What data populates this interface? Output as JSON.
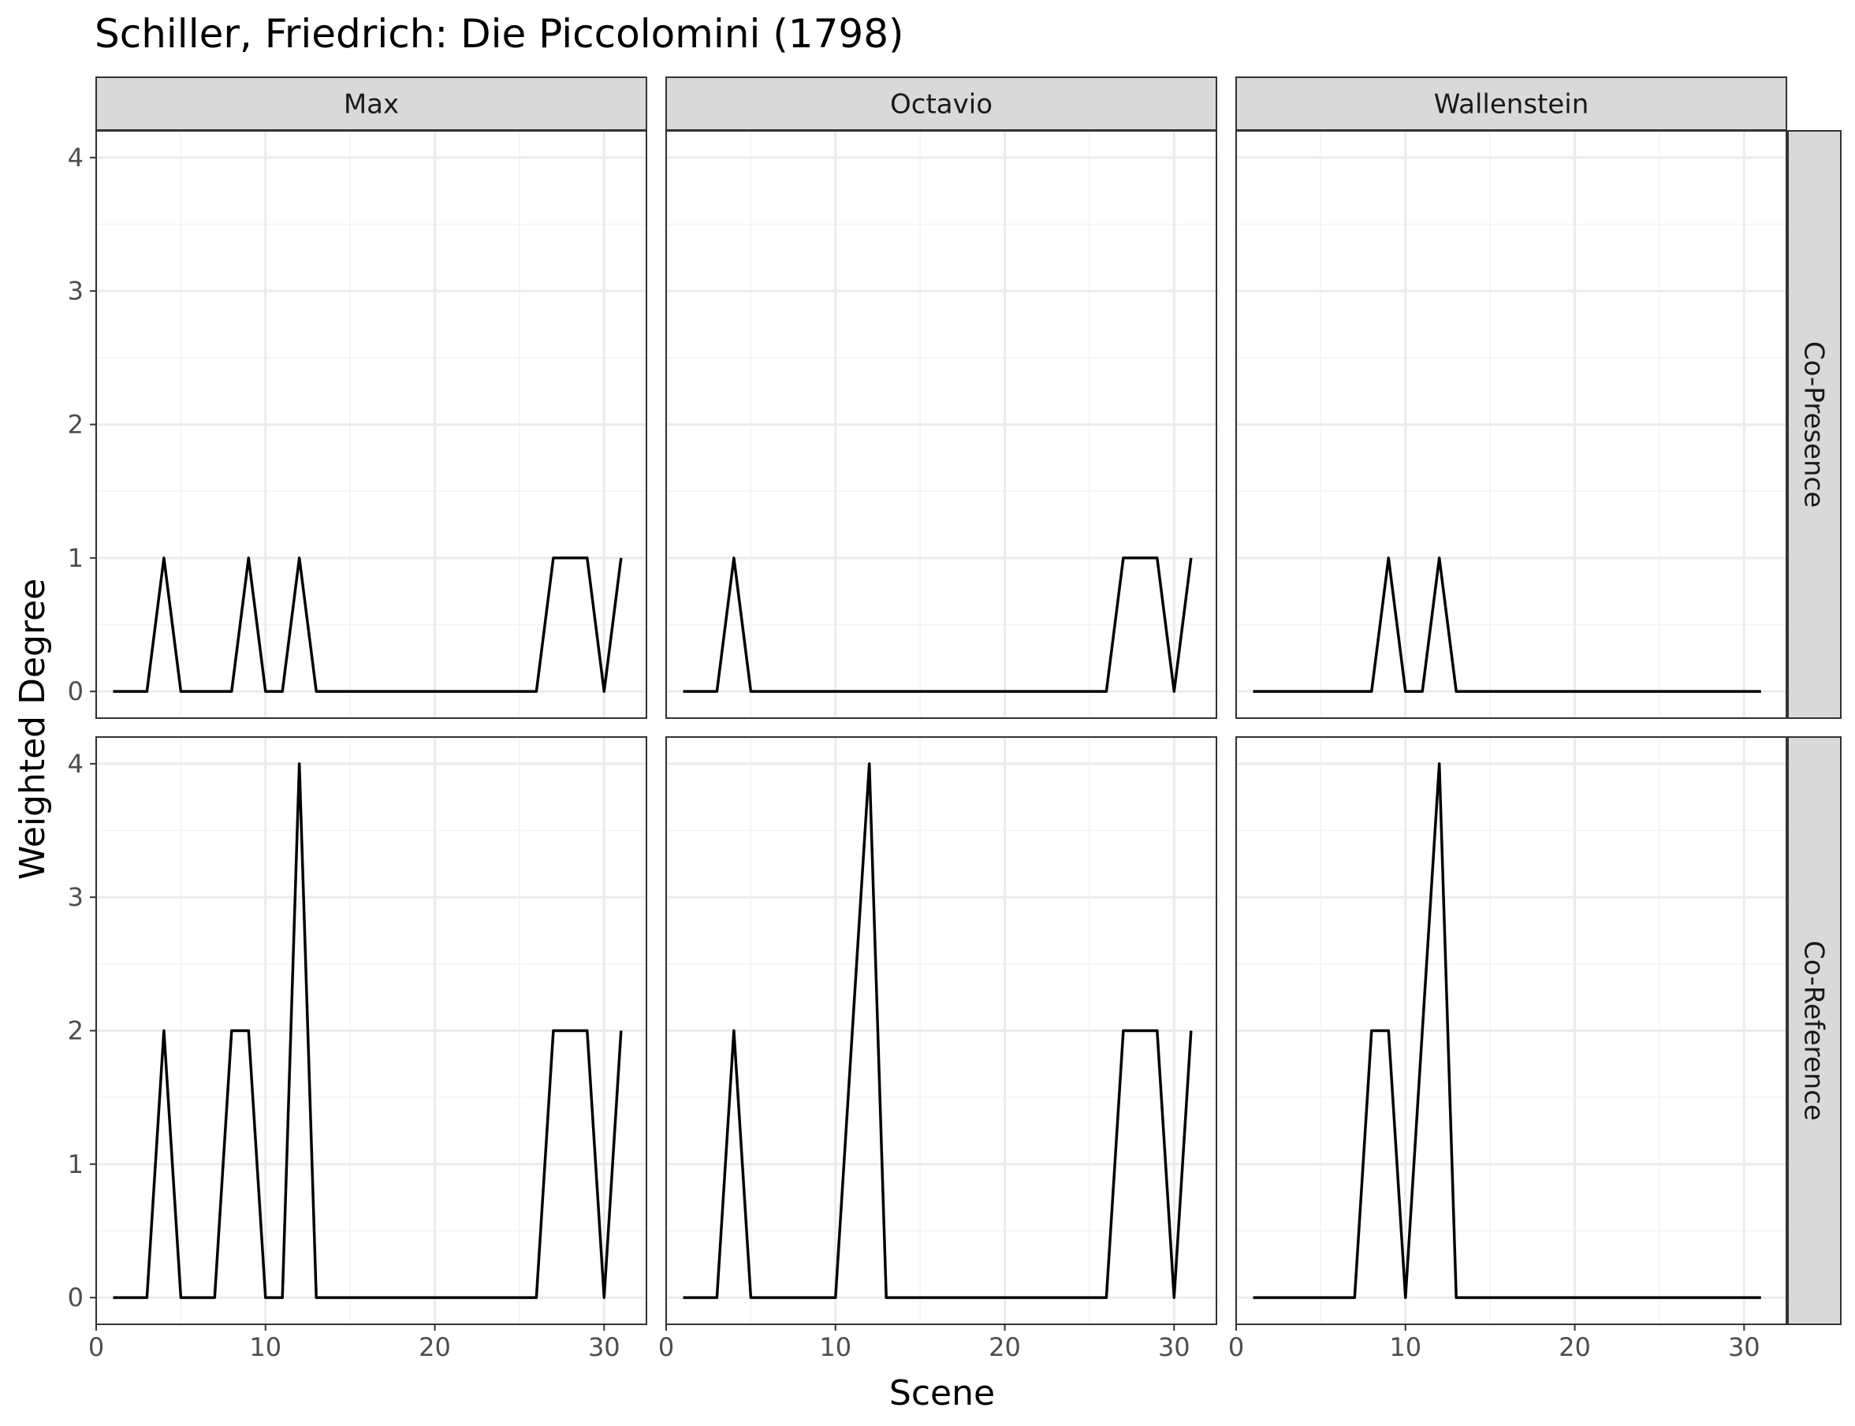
{
  "chart_data": {
    "type": "line",
    "title": "Schiller, Friedrich: Die Piccolomini (1798)",
    "xlabel": "Scene",
    "ylabel": "Weighted Degree",
    "xlim": [
      0,
      32.5
    ],
    "ylim": [
      0,
      4
    ],
    "x_ticks": [
      0,
      10,
      20,
      30
    ],
    "y_ticks": [
      0,
      1,
      2,
      3,
      4
    ],
    "grid": true,
    "columns": [
      "Max",
      "Octavio",
      "Wallenstein"
    ],
    "rows": [
      "Co-Presence",
      "Co-Reference"
    ],
    "x": [
      1,
      2,
      3,
      4,
      5,
      6,
      7,
      8,
      9,
      10,
      11,
      12,
      13,
      14,
      15,
      16,
      17,
      18,
      19,
      20,
      21,
      22,
      23,
      24,
      25,
      26,
      27,
      28,
      29,
      30,
      31
    ],
    "panels": [
      {
        "column": "Max",
        "row": "Co-Presence",
        "values": [
          0,
          0,
          0,
          1,
          0,
          0,
          0,
          0,
          1,
          0,
          0,
          1,
          0,
          0,
          0,
          0,
          0,
          0,
          0,
          0,
          0,
          0,
          0,
          0,
          0,
          0,
          1,
          1,
          1,
          0,
          1
        ]
      },
      {
        "column": "Octavio",
        "row": "Co-Presence",
        "values": [
          0,
          0,
          0,
          1,
          0,
          0,
          0,
          0,
          0,
          0,
          0,
          0,
          0,
          0,
          0,
          0,
          0,
          0,
          0,
          0,
          0,
          0,
          0,
          0,
          0,
          0,
          1,
          1,
          1,
          0,
          1
        ]
      },
      {
        "column": "Wallenstein",
        "row": "Co-Presence",
        "values": [
          0,
          0,
          0,
          0,
          0,
          0,
          0,
          0,
          1,
          0,
          0,
          1,
          0,
          0,
          0,
          0,
          0,
          0,
          0,
          0,
          0,
          0,
          0,
          0,
          0,
          0,
          0,
          0,
          0,
          0,
          0
        ]
      },
      {
        "column": "Max",
        "row": "Co-Reference",
        "values": [
          0,
          0,
          0,
          2,
          0,
          0,
          0,
          2,
          2,
          0,
          0,
          4,
          0,
          0,
          0,
          0,
          0,
          0,
          0,
          0,
          0,
          0,
          0,
          0,
          0,
          0,
          2,
          2,
          2,
          0,
          2
        ]
      },
      {
        "column": "Octavio",
        "row": "Co-Reference",
        "values": [
          0,
          0,
          0,
          2,
          0,
          0,
          0,
          0,
          0,
          0,
          2,
          4,
          0,
          0,
          0,
          0,
          0,
          0,
          0,
          0,
          0,
          0,
          0,
          0,
          0,
          0,
          2,
          2,
          2,
          0,
          2
        ]
      },
      {
        "column": "Wallenstein",
        "row": "Co-Reference",
        "values": [
          0,
          0,
          0,
          0,
          0,
          0,
          0,
          2,
          2,
          0,
          2,
          4,
          0,
          0,
          0,
          0,
          0,
          0,
          0,
          0,
          0,
          0,
          0,
          0,
          0,
          0,
          0,
          0,
          0,
          0,
          0
        ]
      }
    ]
  }
}
